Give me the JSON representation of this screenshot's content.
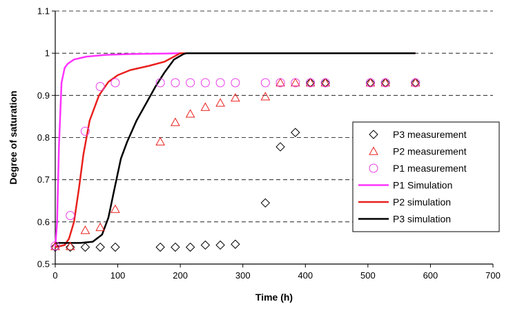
{
  "chart_data": {
    "type": "scatter",
    "title": "",
    "xlabel": "Time (h)",
    "ylabel": "Degree of saturation",
    "xlim": [
      0,
      700
    ],
    "ylim": [
      0.5,
      1.1
    ],
    "xticks": [
      "0",
      "100",
      "200",
      "300",
      "400",
      "500",
      "600",
      "700"
    ],
    "yticks": [
      "0.5",
      "0.6",
      "0.7",
      "0.8",
      "0.9",
      "1",
      "1.1"
    ],
    "grid": "horizontal dashed",
    "legend_position": "right",
    "series": [
      {
        "name": "P3 measurement",
        "kind": "marker",
        "marker": "diamond",
        "color": "#000000",
        "x": [
          0,
          24,
          48,
          72,
          96,
          168,
          192,
          216,
          240,
          264,
          288,
          336,
          360,
          384,
          408,
          432,
          504,
          528,
          576
        ],
        "y": [
          0.54,
          0.54,
          0.54,
          0.54,
          0.54,
          0.54,
          0.54,
          0.54,
          0.545,
          0.545,
          0.547,
          0.645,
          0.778,
          0.812,
          0.93,
          0.93,
          0.93,
          0.93,
          0.93
        ]
      },
      {
        "name": "P2 measurement",
        "kind": "marker",
        "marker": "triangle",
        "color": "#e8211d",
        "x": [
          0,
          24,
          48,
          72,
          96,
          168,
          192,
          216,
          240,
          264,
          288,
          336,
          360,
          384,
          408,
          432,
          504,
          528,
          576
        ],
        "y": [
          0.542,
          0.542,
          0.58,
          0.587,
          0.63,
          0.79,
          0.836,
          0.856,
          0.872,
          0.882,
          0.894,
          0.897,
          0.93,
          0.93,
          0.93,
          0.93,
          0.93,
          0.93,
          0.93
        ]
      },
      {
        "name": "P1 measurement",
        "kind": "marker",
        "marker": "circle",
        "color": "#e83ee8",
        "x": [
          0,
          24,
          48,
          72,
          96,
          168,
          192,
          216,
          240,
          264,
          288,
          336,
          360,
          384,
          408,
          432,
          504,
          528,
          576
        ],
        "y": [
          0.543,
          0.615,
          0.815,
          0.921,
          0.93,
          0.93,
          0.93,
          0.93,
          0.93,
          0.93,
          0.93,
          0.93,
          0.93,
          0.93,
          0.93,
          0.93,
          0.93,
          0.93,
          0.93
        ]
      },
      {
        "name": "P1 Simulation",
        "kind": "line",
        "color": "#ff33ff",
        "x": [
          0,
          3,
          6,
          10,
          15,
          20,
          30,
          50,
          80,
          120,
          170,
          200,
          576
        ],
        "y": [
          0.54,
          0.6,
          0.78,
          0.93,
          0.965,
          0.975,
          0.985,
          0.992,
          0.996,
          0.998,
          0.999,
          1.0,
          1.0
        ]
      },
      {
        "name": "P2 simulation",
        "kind": "line",
        "color": "#e8211d",
        "x": [
          0,
          15,
          22,
          30,
          38,
          45,
          55,
          70,
          85,
          100,
          120,
          150,
          175,
          200,
          576
        ],
        "y": [
          0.54,
          0.545,
          0.56,
          0.6,
          0.68,
          0.76,
          0.84,
          0.9,
          0.932,
          0.948,
          0.96,
          0.97,
          0.98,
          1.0,
          1.0
        ]
      },
      {
        "name": "P3 simulation",
        "kind": "line",
        "color": "#000000",
        "x": [
          0,
          20,
          40,
          60,
          75,
          85,
          95,
          105,
          115,
          130,
          145,
          160,
          175,
          190,
          205,
          210,
          576
        ],
        "y": [
          0.55,
          0.55,
          0.55,
          0.553,
          0.57,
          0.61,
          0.68,
          0.75,
          0.79,
          0.84,
          0.88,
          0.92,
          0.955,
          0.985,
          0.998,
          1.0,
          1.0
        ]
      }
    ]
  }
}
